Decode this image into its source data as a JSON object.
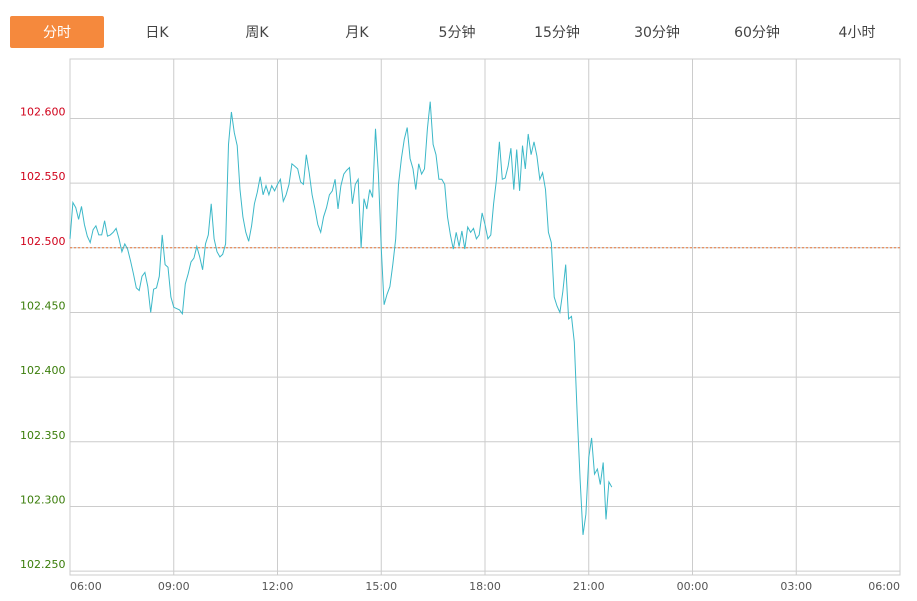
{
  "tabs": {
    "labels": [
      "分时",
      "日K",
      "周K",
      "月K",
      "5分钟",
      "15分钟",
      "30分钟",
      "60分钟",
      "4小时"
    ],
    "active": 0,
    "active_color": "#f5893d"
  },
  "chart_data": {
    "type": "line",
    "x": [
      "06:00",
      "06:05",
      "06:10",
      "06:15",
      "06:20",
      "06:25",
      "06:30",
      "06:35",
      "06:40",
      "06:45",
      "06:50",
      "06:55",
      "07:00",
      "07:05",
      "07:10",
      "07:15",
      "07:20",
      "07:25",
      "07:30",
      "07:35",
      "07:40",
      "07:45",
      "07:50",
      "07:55",
      "08:00",
      "08:05",
      "08:10",
      "08:15",
      "08:20",
      "08:25",
      "08:30",
      "08:35",
      "08:40",
      "08:45",
      "08:50",
      "08:55",
      "09:00",
      "09:05",
      "09:10",
      "09:15",
      "09:20",
      "09:25",
      "09:30",
      "09:35",
      "09:40",
      "09:45",
      "09:50",
      "09:55",
      "10:00",
      "10:05",
      "10:10",
      "10:15",
      "10:20",
      "10:25",
      "10:30",
      "10:35",
      "10:40",
      "10:45",
      "10:50",
      "10:55",
      "11:00",
      "11:05",
      "11:10",
      "11:15",
      "11:20",
      "11:25",
      "11:30",
      "11:35",
      "11:40",
      "11:45",
      "11:50",
      "11:55",
      "12:00",
      "12:05",
      "12:10",
      "12:15",
      "12:20",
      "12:25",
      "12:30",
      "12:35",
      "12:40",
      "12:45",
      "12:50",
      "12:55",
      "13:00",
      "13:05",
      "13:10",
      "13:15",
      "13:20",
      "13:25",
      "13:30",
      "13:35",
      "13:40",
      "13:45",
      "13:50",
      "13:55",
      "14:00",
      "14:05",
      "14:10",
      "14:15",
      "14:20",
      "14:25",
      "14:30",
      "14:35",
      "14:40",
      "14:45",
      "14:50",
      "14:55",
      "15:00",
      "15:05",
      "15:10",
      "15:15",
      "15:20",
      "15:25",
      "15:30",
      "15:35",
      "15:40",
      "15:45",
      "15:50",
      "15:55",
      "16:00",
      "16:05",
      "16:10",
      "16:15",
      "16:20",
      "16:25",
      "16:30",
      "16:35",
      "16:40",
      "16:45",
      "16:50",
      "16:55",
      "17:00",
      "17:05",
      "17:10",
      "17:15",
      "17:20",
      "17:25",
      "17:30",
      "17:35",
      "17:40",
      "17:45",
      "17:50",
      "17:55",
      "18:00",
      "18:05",
      "18:10",
      "18:15",
      "18:20",
      "18:25",
      "18:30",
      "18:35",
      "18:40",
      "18:45",
      "18:50",
      "18:55",
      "19:00",
      "19:05",
      "19:10",
      "19:15",
      "19:20",
      "19:25",
      "19:30",
      "19:35",
      "19:40",
      "19:45",
      "19:50",
      "19:55",
      "20:00",
      "20:05",
      "20:10",
      "20:15",
      "20:20",
      "20:25",
      "20:30",
      "20:35",
      "20:40",
      "20:45",
      "20:50",
      "20:55",
      "21:00",
      "21:05",
      "21:10",
      "21:15",
      "21:20",
      "21:25",
      "21:30",
      "21:35",
      "21:40"
    ],
    "series": [
      {
        "color": "#3cb8c8",
        "values": [
          102.507,
          102.535,
          102.531,
          102.522,
          102.532,
          102.518,
          102.509,
          102.504,
          102.514,
          102.517,
          102.51,
          102.51,
          102.521,
          102.509,
          102.51,
          102.512,
          102.515,
          102.507,
          102.497,
          102.503,
          102.499,
          102.49,
          102.48,
          102.469,
          102.467,
          102.478,
          102.481,
          102.47,
          102.45,
          102.468,
          102.469,
          102.478,
          102.51,
          102.487,
          102.485,
          102.462,
          102.454,
          102.453,
          102.452,
          102.449,
          102.472,
          102.48,
          102.489,
          102.492,
          102.501,
          102.493,
          102.483,
          102.503,
          102.51,
          102.534,
          102.507,
          102.497,
          102.493,
          102.495,
          102.503,
          102.58,
          102.605,
          102.589,
          102.579,
          102.545,
          102.524,
          102.512,
          102.505,
          102.517,
          102.534,
          102.543,
          102.555,
          102.541,
          102.548,
          102.541,
          102.548,
          102.544,
          102.549,
          102.553,
          102.536,
          102.541,
          102.549,
          102.565,
          102.563,
          102.561,
          102.551,
          102.549,
          102.572,
          102.558,
          102.541,
          102.53,
          102.518,
          102.512,
          102.524,
          102.531,
          102.541,
          102.544,
          102.553,
          102.53,
          102.548,
          102.557,
          102.56,
          102.562,
          102.534,
          102.549,
          102.553,
          102.5,
          102.538,
          102.53,
          102.545,
          102.539,
          102.592,
          102.557,
          102.499,
          102.456,
          102.464,
          102.47,
          102.487,
          102.507,
          102.549,
          102.569,
          102.584,
          102.593,
          102.569,
          102.561,
          102.545,
          102.565,
          102.557,
          102.561,
          102.592,
          102.613,
          102.58,
          102.572,
          102.553,
          102.553,
          102.549,
          102.524,
          102.51,
          102.499,
          102.512,
          102.501,
          102.513,
          102.499,
          102.516,
          102.512,
          102.515,
          102.507,
          102.51,
          102.527,
          102.518,
          102.507,
          102.51,
          102.534,
          102.553,
          102.582,
          102.553,
          102.554,
          102.563,
          102.577,
          102.545,
          102.576,
          102.544,
          102.579,
          102.561,
          102.588,
          102.572,
          102.582,
          102.571,
          102.553,
          102.558,
          102.545,
          102.512,
          102.504,
          102.462,
          102.455,
          102.45,
          102.466,
          102.487,
          102.445,
          102.447,
          102.427,
          102.371,
          102.321,
          102.278,
          102.294,
          102.338,
          102.353,
          102.325,
          102.329,
          102.317,
          102.334,
          102.29,
          102.319,
          102.315
        ]
      }
    ],
    "xlim": [
      "06:00",
      "06:00"
    ],
    "xticks": [
      "06:00",
      "09:00",
      "12:00",
      "15:00",
      "18:00",
      "21:00",
      "00:00",
      "03:00",
      "06:00"
    ],
    "ylim": [
      102.247,
      102.646
    ],
    "yticks": [
      {
        "value": 102.25,
        "label": "102.250"
      },
      {
        "value": 102.3,
        "label": "102.300"
      },
      {
        "value": 102.35,
        "label": "102.350"
      },
      {
        "value": 102.4,
        "label": "102.400"
      },
      {
        "value": 102.45,
        "label": "102.450"
      },
      {
        "value": 102.5,
        "label": "102.500"
      },
      {
        "value": 102.55,
        "label": "102.550"
      },
      {
        "value": 102.6,
        "label": "102.600"
      }
    ],
    "reference": 102.5,
    "reference_color": "#e8773a",
    "up_color": "#d0021b",
    "down_color": "#3a7d0a",
    "grid": true
  }
}
